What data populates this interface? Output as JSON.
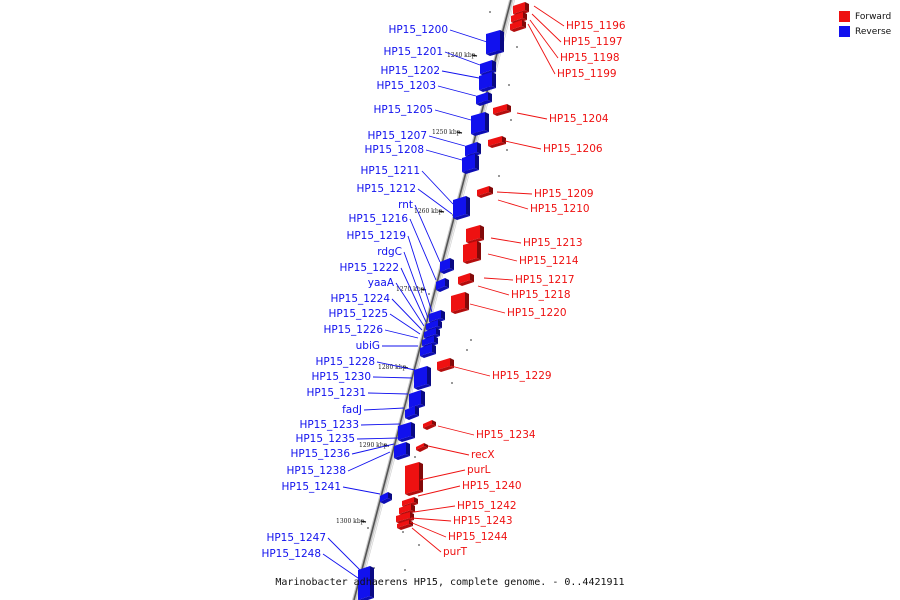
{
  "legend": {
    "forward_label": "Forward",
    "reverse_label": "Reverse",
    "forward_color": "#ee1111",
    "reverse_color": "#1111ee"
  },
  "caption": "Marinobacter adhaerens HP15, complete genome. - 0..4421911",
  "ticks": [
    "1240 kbp",
    "1250 kbp",
    "1260 kbp",
    "1270 kbp",
    "1280 kbp",
    "1290 kbp",
    "1300 kbp"
  ],
  "reverse_labels": [
    "HP15_1200",
    "HP15_1201",
    "HP15_1202",
    "HP15_1203",
    "HP15_1205",
    "HP15_1207",
    "HP15_1208",
    "HP15_1211",
    "HP15_1212",
    "rnt",
    "HP15_1216",
    "HP15_1219",
    "rdgC",
    "HP15_1222",
    "yaaA",
    "HP15_1224",
    "HP15_1225",
    "HP15_1226",
    "ubiG",
    "HP15_1228",
    "HP15_1230",
    "HP15_1231",
    "fadJ",
    "HP15_1233",
    "HP15_1235",
    "HP15_1236",
    "HP15_1238",
    "HP15_1241",
    "HP15_1247",
    "HP15_1248"
  ],
  "forward_labels": [
    "HP15_1196",
    "HP15_1197",
    "HP15_1198",
    "HP15_1199",
    "HP15_1204",
    "HP15_1206",
    "HP15_1209",
    "HP15_1210",
    "HP15_1213",
    "HP15_1214",
    "HP15_1217",
    "HP15_1218",
    "HP15_1220",
    "HP15_1229",
    "HP15_1234",
    "recX",
    "purL",
    "HP15_1240",
    "HP15_1242",
    "HP15_1243",
    "HP15_1244",
    "purT"
  ]
}
